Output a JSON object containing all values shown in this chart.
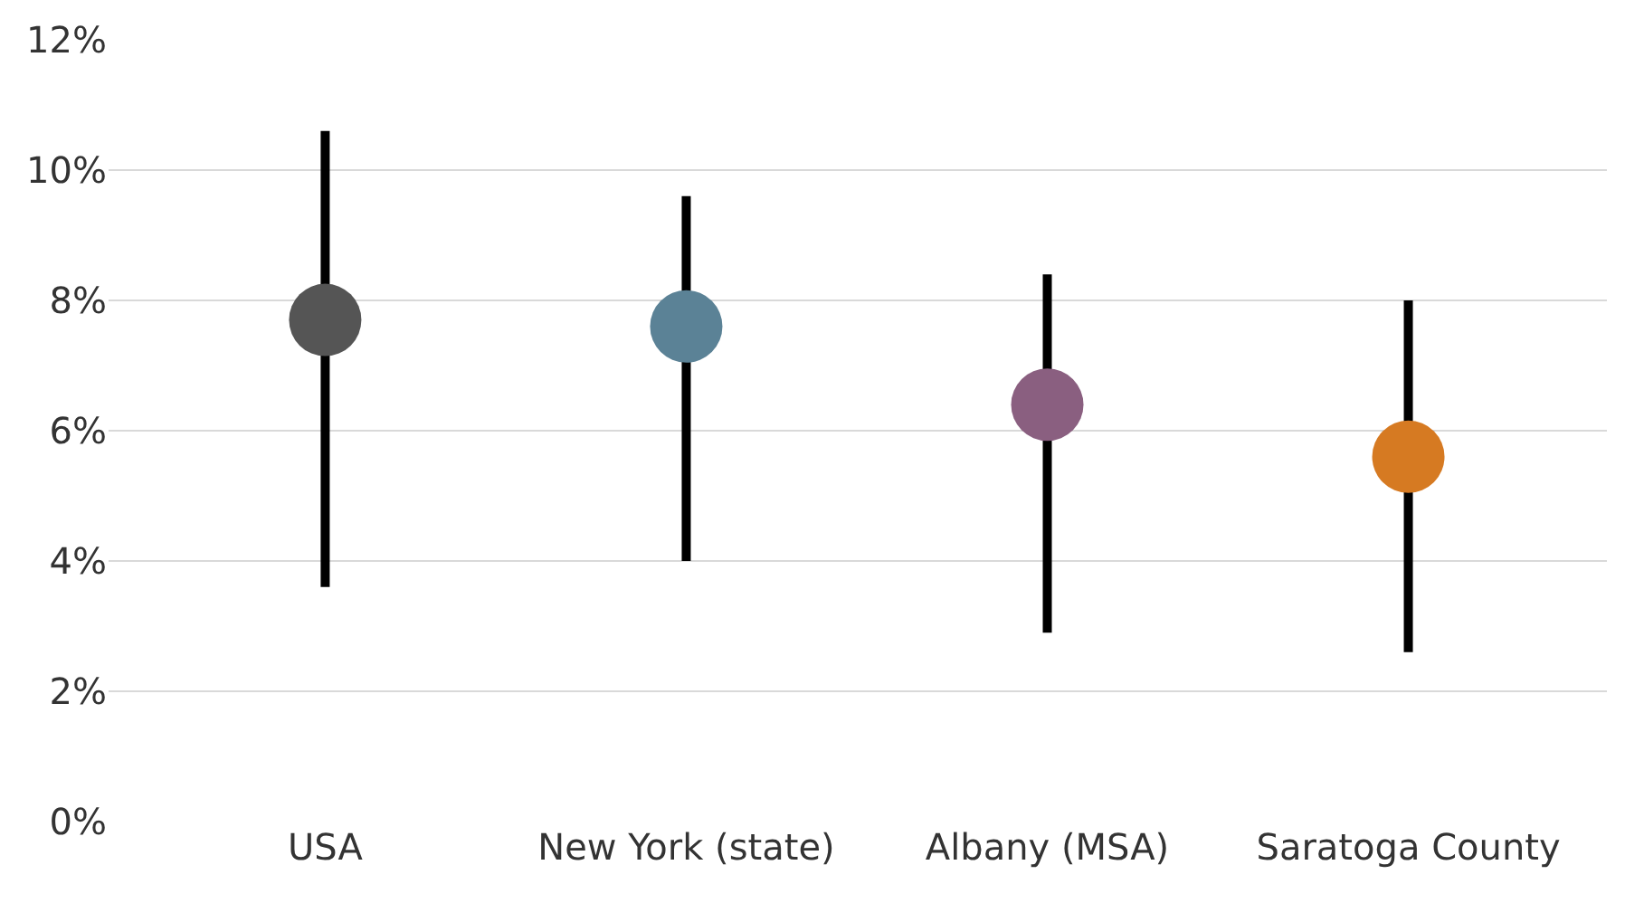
{
  "chart_data": {
    "type": "scatter",
    "categories": [
      "USA",
      "New York (state)",
      "Albany (MSA)",
      "Saratoga County"
    ],
    "values": [
      7.7,
      7.6,
      6.4,
      5.6
    ],
    "colors": [
      "#555555",
      "#5b8296",
      "#8a5f80",
      "#d67a22"
    ],
    "errors": [
      [
        3.6,
        10.6
      ],
      [
        4.0,
        9.6
      ],
      [
        2.9,
        8.4
      ],
      [
        2.6,
        8.0
      ]
    ],
    "ylim": [
      0,
      12
    ],
    "yticks": [
      {
        "value": 0,
        "label": "0%"
      },
      {
        "value": 2,
        "label": "2%"
      },
      {
        "value": 4,
        "label": "4%"
      },
      {
        "value": 6,
        "label": "6%"
      },
      {
        "value": 8,
        "label": "8%"
      },
      {
        "value": 10,
        "label": "10%"
      },
      {
        "value": 12,
        "label": "12%"
      }
    ],
    "grid": "y",
    "marker": "circle",
    "legend": false
  }
}
